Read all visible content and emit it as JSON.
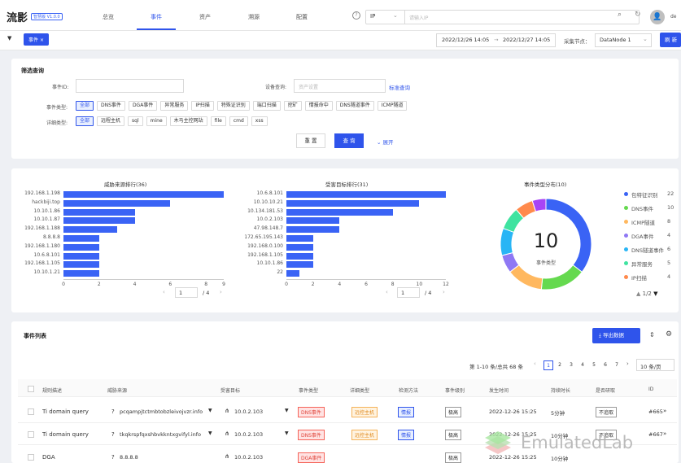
{
  "app": {
    "logo": "流影",
    "version": "智慧版 V1.0.0"
  },
  "nav": [
    {
      "label": "总览"
    },
    {
      "label": "事件"
    },
    {
      "label": "资产"
    },
    {
      "label": "溯源"
    },
    {
      "label": "配置"
    }
  ],
  "search": {
    "type": "IP",
    "placeholder": "请输入IP"
  },
  "user": {
    "name": "de"
  },
  "tabs": {
    "active": "事件",
    "close": "×"
  },
  "time_range": {
    "start": "2022/12/26 14:05",
    "sep": "→",
    "end": "2022/12/27 14:05"
  },
  "node": {
    "label": "采集节点：",
    "value": "DataNode 1"
  },
  "refresh": "刷 新",
  "filter": {
    "title": "筛选查询",
    "event_id_label": "事件ID:",
    "device_label": "设备查询:",
    "device_placeholder": "资产设置",
    "advanced": "标准查询",
    "event_type_label": "事件类型:",
    "event_types": [
      "全部",
      "DNS事件",
      "DGA事件",
      "异常服务",
      "IP扫描",
      "特殊证识别",
      "端口扫描",
      "挖矿",
      "情报命中",
      "DNS隧道事件",
      "ICMP隧道"
    ],
    "detail_label": "详细类型:",
    "detail_types": [
      "全部",
      "远程主机",
      "sql",
      "mine",
      "木马主控网站",
      "file",
      "cmd",
      "xss"
    ],
    "reset": "重 置",
    "query": "查 询",
    "expand": "展开"
  },
  "threat_chart": {
    "title": "威胁来源排行(36)",
    "type": "bar",
    "categories": [
      "192.168.1.198",
      "hackbiji.top",
      "10.10.1.86",
      "10.10.1.87",
      "192.168.1.188",
      "8.8.8.8",
      "192.168.1.180",
      "10.6.8.101",
      "192.168.1.105",
      "10.10.1.21"
    ],
    "values": [
      9,
      6,
      4,
      4,
      3,
      2,
      2,
      2,
      2,
      2
    ],
    "xticks": [
      "0",
      "2",
      "4",
      "6",
      "8",
      "9"
    ],
    "xlim": [
      0,
      9
    ],
    "page": "1",
    "total": "/ 4"
  },
  "target_chart": {
    "title": "受害目标排行(31)",
    "type": "bar",
    "categories": [
      "10.6.8.101",
      "10.10.10.21",
      "10.134.181.53",
      "10.0.2.103",
      "47.98.148.7",
      "172.65.195.143",
      "192.168.0.100",
      "192.168.1.105",
      "10.10.1.86",
      "22"
    ],
    "values": [
      12,
      10,
      8,
      4,
      4,
      2,
      2,
      2,
      2,
      1
    ],
    "xticks": [
      "0",
      "2",
      "4",
      "6",
      "8",
      "10",
      "12"
    ],
    "xlim": [
      0,
      12
    ],
    "page": "1",
    "total": "/ 4"
  },
  "donut": {
    "title": "事件类型分布(10)",
    "center_value": "10",
    "center_label": "事件类型",
    "legend": [
      {
        "name": "包特征识别",
        "value": "22",
        "color": "#3a63f5"
      },
      {
        "name": "DNS事件",
        "value": "10",
        "color": "#65d94f"
      },
      {
        "name": "ICMP隧道",
        "value": "8",
        "color": "#ffb85f"
      },
      {
        "name": "DGA事件",
        "value": "4",
        "color": "#8f78f4"
      },
      {
        "name": "DNS隧道事件",
        "value": "6",
        "color": "#29b5f5"
      },
      {
        "name": "异常服务",
        "value": "5",
        "color": "#3fe3a0"
      },
      {
        "name": "IP扫描",
        "value": "4",
        "color": "#ff8a4c"
      }
    ],
    "extra_color": "#a844f5",
    "page": "1/2"
  },
  "events": {
    "title": "事件列表",
    "export": "导出数据",
    "pagination": {
      "summary": "第 1-10 条/总共 68 条",
      "pages": [
        "1",
        "2",
        "3",
        "4",
        "5",
        "6",
        "7"
      ],
      "size": "10 条/页"
    },
    "columns": [
      "规则描述",
      "威胁来源",
      "受害目标",
      "事件类型",
      "详细类型",
      "检测方法",
      "事件级别",
      "发生时间",
      "持续时长",
      "是否研取",
      "ID"
    ],
    "rows": [
      {
        "rule": "Ti domain query",
        "src": "pcqampjtctmbtobzleivojvzr.info",
        "dst": "10.0.2.103",
        "etype": "DNS事件",
        "dtype": "远控主机",
        "method": "情报",
        "level": "极高",
        "time": "2022-12-26 15:25",
        "dur": "5分钟",
        "handled": "不追取",
        "id": "#665"
      },
      {
        "rule": "Ti domain query",
        "src": "tkqkrspfqxshbvkkntxgvifyl.info",
        "dst": "10.0.2.103",
        "etype": "DNS事件",
        "dtype": "远控主机",
        "method": "情报",
        "level": "极高",
        "time": "2022-12-26 15:25",
        "dur": "10分钟",
        "handled": "不追取",
        "id": "#667"
      },
      {
        "rule": "DGA",
        "src": "8.8.8.8",
        "dst": "10.0.2.103",
        "etype": "DGA事件",
        "dtype": "",
        "method": "",
        "level": "极高",
        "time": "2022-12-26 15:25",
        "dur": "10分钟",
        "handled": "",
        "id": ""
      }
    ]
  },
  "watermark": "EmulatedLab"
}
